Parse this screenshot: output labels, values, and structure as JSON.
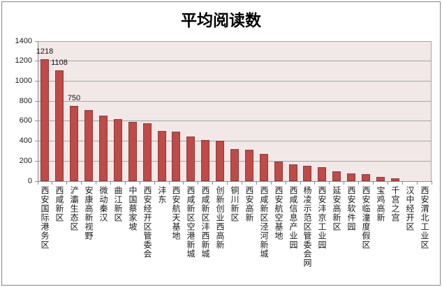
{
  "title": "平均阅读数",
  "colors": {
    "bar_fill": "#BE4B48",
    "bar_border": "#8E3A37",
    "plot_background": "#F2E8E8",
    "gridline": "#A5A5A5",
    "axis": "#8C8C8C",
    "text": "#1A1A1A"
  },
  "chart_data": {
    "type": "bar",
    "title": "平均阅读数",
    "xlabel": "",
    "ylabel": "",
    "ylim": [
      0,
      1400
    ],
    "ytick_interval": 200,
    "grid": true,
    "legend": false,
    "categories": [
      "西安国际港务区",
      "西咸新区",
      "浐灞生态区",
      "安康高新视野",
      "微动秦汉",
      "曲江新区",
      "中国蔡家坡",
      "西安经开区管委会",
      "沣东",
      "西安航天基地",
      "西咸新区空港新城",
      "西咸新区沣西新城",
      "创新创业西高新",
      "铜川新区",
      "西安高新",
      "西咸新区泾河新城",
      "西安航空基地",
      "西咸信息产业园",
      "杨凌示范区管委会网",
      "西安沣京工业园",
      "延安高新区",
      "西安软件园",
      "西安临潼度假区",
      "宝鸡高新",
      "千宫之宫",
      "汉中经开区",
      "西安渭北工业区"
    ],
    "values": [
      1218,
      1108,
      750,
      710,
      655,
      620,
      590,
      580,
      500,
      498,
      445,
      410,
      405,
      320,
      310,
      275,
      195,
      165,
      150,
      140,
      95,
      80,
      70,
      40,
      28,
      0,
      0
    ],
    "point_labels": [
      {
        "index": 0,
        "text": "1218"
      },
      {
        "index": 1,
        "text": "1108"
      },
      {
        "index": 2,
        "text": "750"
      }
    ]
  }
}
